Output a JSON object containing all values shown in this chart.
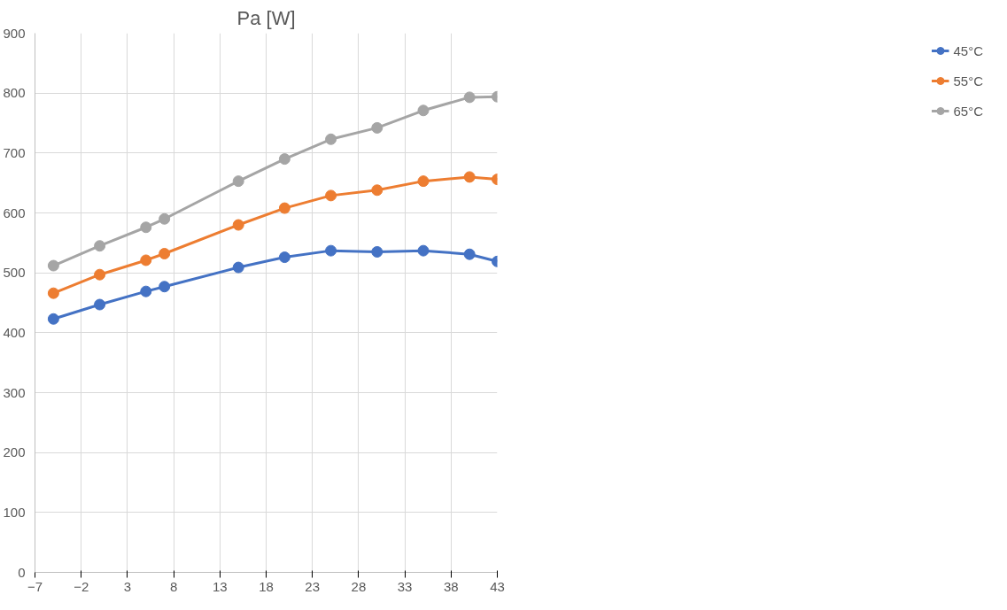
{
  "chart_data": {
    "type": "line",
    "title": "Pa [W]",
    "x": [
      -5,
      0,
      5,
      7,
      15,
      20,
      25,
      30,
      35,
      40,
      43
    ],
    "series": [
      {
        "name": "45°C",
        "color": "#4472c4",
        "values": [
          423,
          447,
          469,
          477,
          509,
          526,
          537,
          535,
          537,
          531,
          519
        ]
      },
      {
        "name": "55°C",
        "color": "#ed7d31",
        "values": [
          466,
          497,
          521,
          532,
          580,
          608,
          629,
          638,
          653,
          660,
          656
        ]
      },
      {
        "name": "65°C",
        "color": "#a5a5a5",
        "values": [
          512,
          545,
          576,
          590,
          653,
          690,
          723,
          742,
          771,
          793,
          794
        ]
      }
    ],
    "xlim": [
      -7,
      43
    ],
    "xticks": [
      -7,
      -2,
      3,
      8,
      13,
      18,
      23,
      28,
      33,
      38,
      43
    ],
    "ylim": [
      0,
      900
    ],
    "yticks": [
      0,
      100,
      200,
      300,
      400,
      500,
      600,
      700,
      800,
      900
    ],
    "grid": true,
    "legend": "right",
    "marker": "circle",
    "line_style": "solid"
  }
}
